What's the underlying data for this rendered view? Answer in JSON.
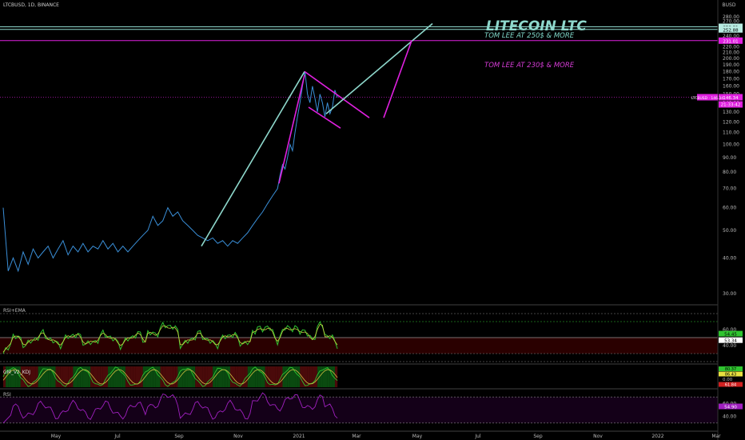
{
  "symbol_line": "LTCBUSD, 1D, BINANCE",
  "currency": "BUSD",
  "title": "LITECOIN LTC",
  "annotations": [
    {
      "text": "TOM LEE AT 250$ & MORE",
      "color": "#7fd6c8"
    },
    {
      "text": "TOM LEE AT 230$ & MORE",
      "color": "#d63cd6"
    }
  ],
  "colors": {
    "background": "#000000",
    "price_line": "#3a8fd8",
    "teal": "#8ed8cc",
    "magenta": "#e020e0",
    "rsi_green": "#2fc42f",
    "rsi_ema": "#c8d040",
    "rsi_purple": "#a020c0",
    "grid_dotted": "#8a8a8a"
  },
  "chart_data": {
    "type": "line",
    "price_axis_ticks": [
      30,
      40,
      50,
      60,
      70,
      80,
      90,
      100,
      110,
      120,
      130,
      140,
      150,
      160,
      170,
      180,
      190,
      200,
      210,
      220,
      230,
      240,
      250,
      260,
      270,
      280
    ],
    "x_ticks": [
      "May",
      "Jul",
      "Sep",
      "Nov",
      "2021",
      "Mar",
      "May",
      "Jul",
      "Sep",
      "Nov",
      "2022",
      "Mar"
    ],
    "price_series": [
      [
        0,
        60
      ],
      [
        2,
        36
      ],
      [
        4,
        40
      ],
      [
        6,
        36
      ],
      [
        8,
        42
      ],
      [
        10,
        38
      ],
      [
        12,
        43
      ],
      [
        14,
        40
      ],
      [
        16,
        42
      ],
      [
        18,
        44
      ],
      [
        20,
        40
      ],
      [
        22,
        43
      ],
      [
        24,
        46
      ],
      [
        26,
        41
      ],
      [
        28,
        44
      ],
      [
        30,
        42
      ],
      [
        32,
        45
      ],
      [
        34,
        42
      ],
      [
        36,
        44
      ],
      [
        38,
        43
      ],
      [
        40,
        46
      ],
      [
        42,
        43
      ],
      [
        44,
        45
      ],
      [
        46,
        42
      ],
      [
        48,
        44
      ],
      [
        50,
        42
      ],
      [
        52,
        44
      ],
      [
        54,
        46
      ],
      [
        56,
        48
      ],
      [
        58,
        50
      ],
      [
        60,
        56
      ],
      [
        62,
        52
      ],
      [
        64,
        54
      ],
      [
        66,
        60
      ],
      [
        68,
        56
      ],
      [
        70,
        58
      ],
      [
        72,
        54
      ],
      [
        74,
        52
      ],
      [
        76,
        50
      ],
      [
        78,
        48
      ],
      [
        80,
        47
      ],
      [
        82,
        46
      ],
      [
        84,
        47
      ],
      [
        86,
        45
      ],
      [
        88,
        46
      ],
      [
        90,
        44
      ],
      [
        92,
        46
      ],
      [
        94,
        45
      ],
      [
        96,
        47
      ],
      [
        98,
        49
      ],
      [
        100,
        52
      ],
      [
        102,
        55
      ],
      [
        104,
        58
      ],
      [
        106,
        62
      ],
      [
        108,
        66
      ],
      [
        110,
        70
      ],
      [
        111,
        78
      ],
      [
        112,
        85
      ],
      [
        113,
        82
      ],
      [
        114,
        90
      ],
      [
        115,
        100
      ],
      [
        116,
        95
      ],
      [
        117,
        110
      ],
      [
        118,
        125
      ],
      [
        119,
        140
      ],
      [
        120,
        160
      ],
      [
        121,
        180
      ],
      [
        122,
        150
      ],
      [
        123,
        140
      ],
      [
        124,
        160
      ],
      [
        125,
        145
      ],
      [
        126,
        130
      ],
      [
        127,
        150
      ],
      [
        128,
        140
      ],
      [
        129,
        125
      ],
      [
        130,
        140
      ],
      [
        131,
        128
      ],
      [
        132,
        135
      ],
      [
        133,
        155
      ],
      [
        134,
        146
      ]
    ],
    "price_levels": [
      {
        "value": 258.31,
        "label": "258.31",
        "color": "#8ed8cc"
      },
      {
        "value": 252.88,
        "label": "252.88",
        "color": "#8ed8cc"
      },
      {
        "value": 231.01,
        "label": "231.01",
        "color": "#e020e0"
      },
      {
        "value": 146.34,
        "label": "146.34",
        "color": "#e020e0"
      }
    ],
    "current_price_tag": "LTCBUSD · 146.34",
    "countdown": "21:33:42",
    "panels": [
      {
        "name": "RSI+EMA",
        "value_labels": [
          "54.45",
          "53.34"
        ],
        "ticks": [
          40,
          60
        ],
        "line_levels": [
          80,
          70,
          50,
          30,
          20
        ]
      },
      {
        "name": "GM_V2_KDJ",
        "value_labels": [
          "80.37",
          "86.43",
          "61.84"
        ],
        "ticks": [
          0
        ]
      },
      {
        "name": "RSI",
        "value_labels": [
          "54.90"
        ],
        "ticks": [
          40,
          60
        ],
        "line_levels": [
          70,
          30
        ]
      }
    ]
  }
}
